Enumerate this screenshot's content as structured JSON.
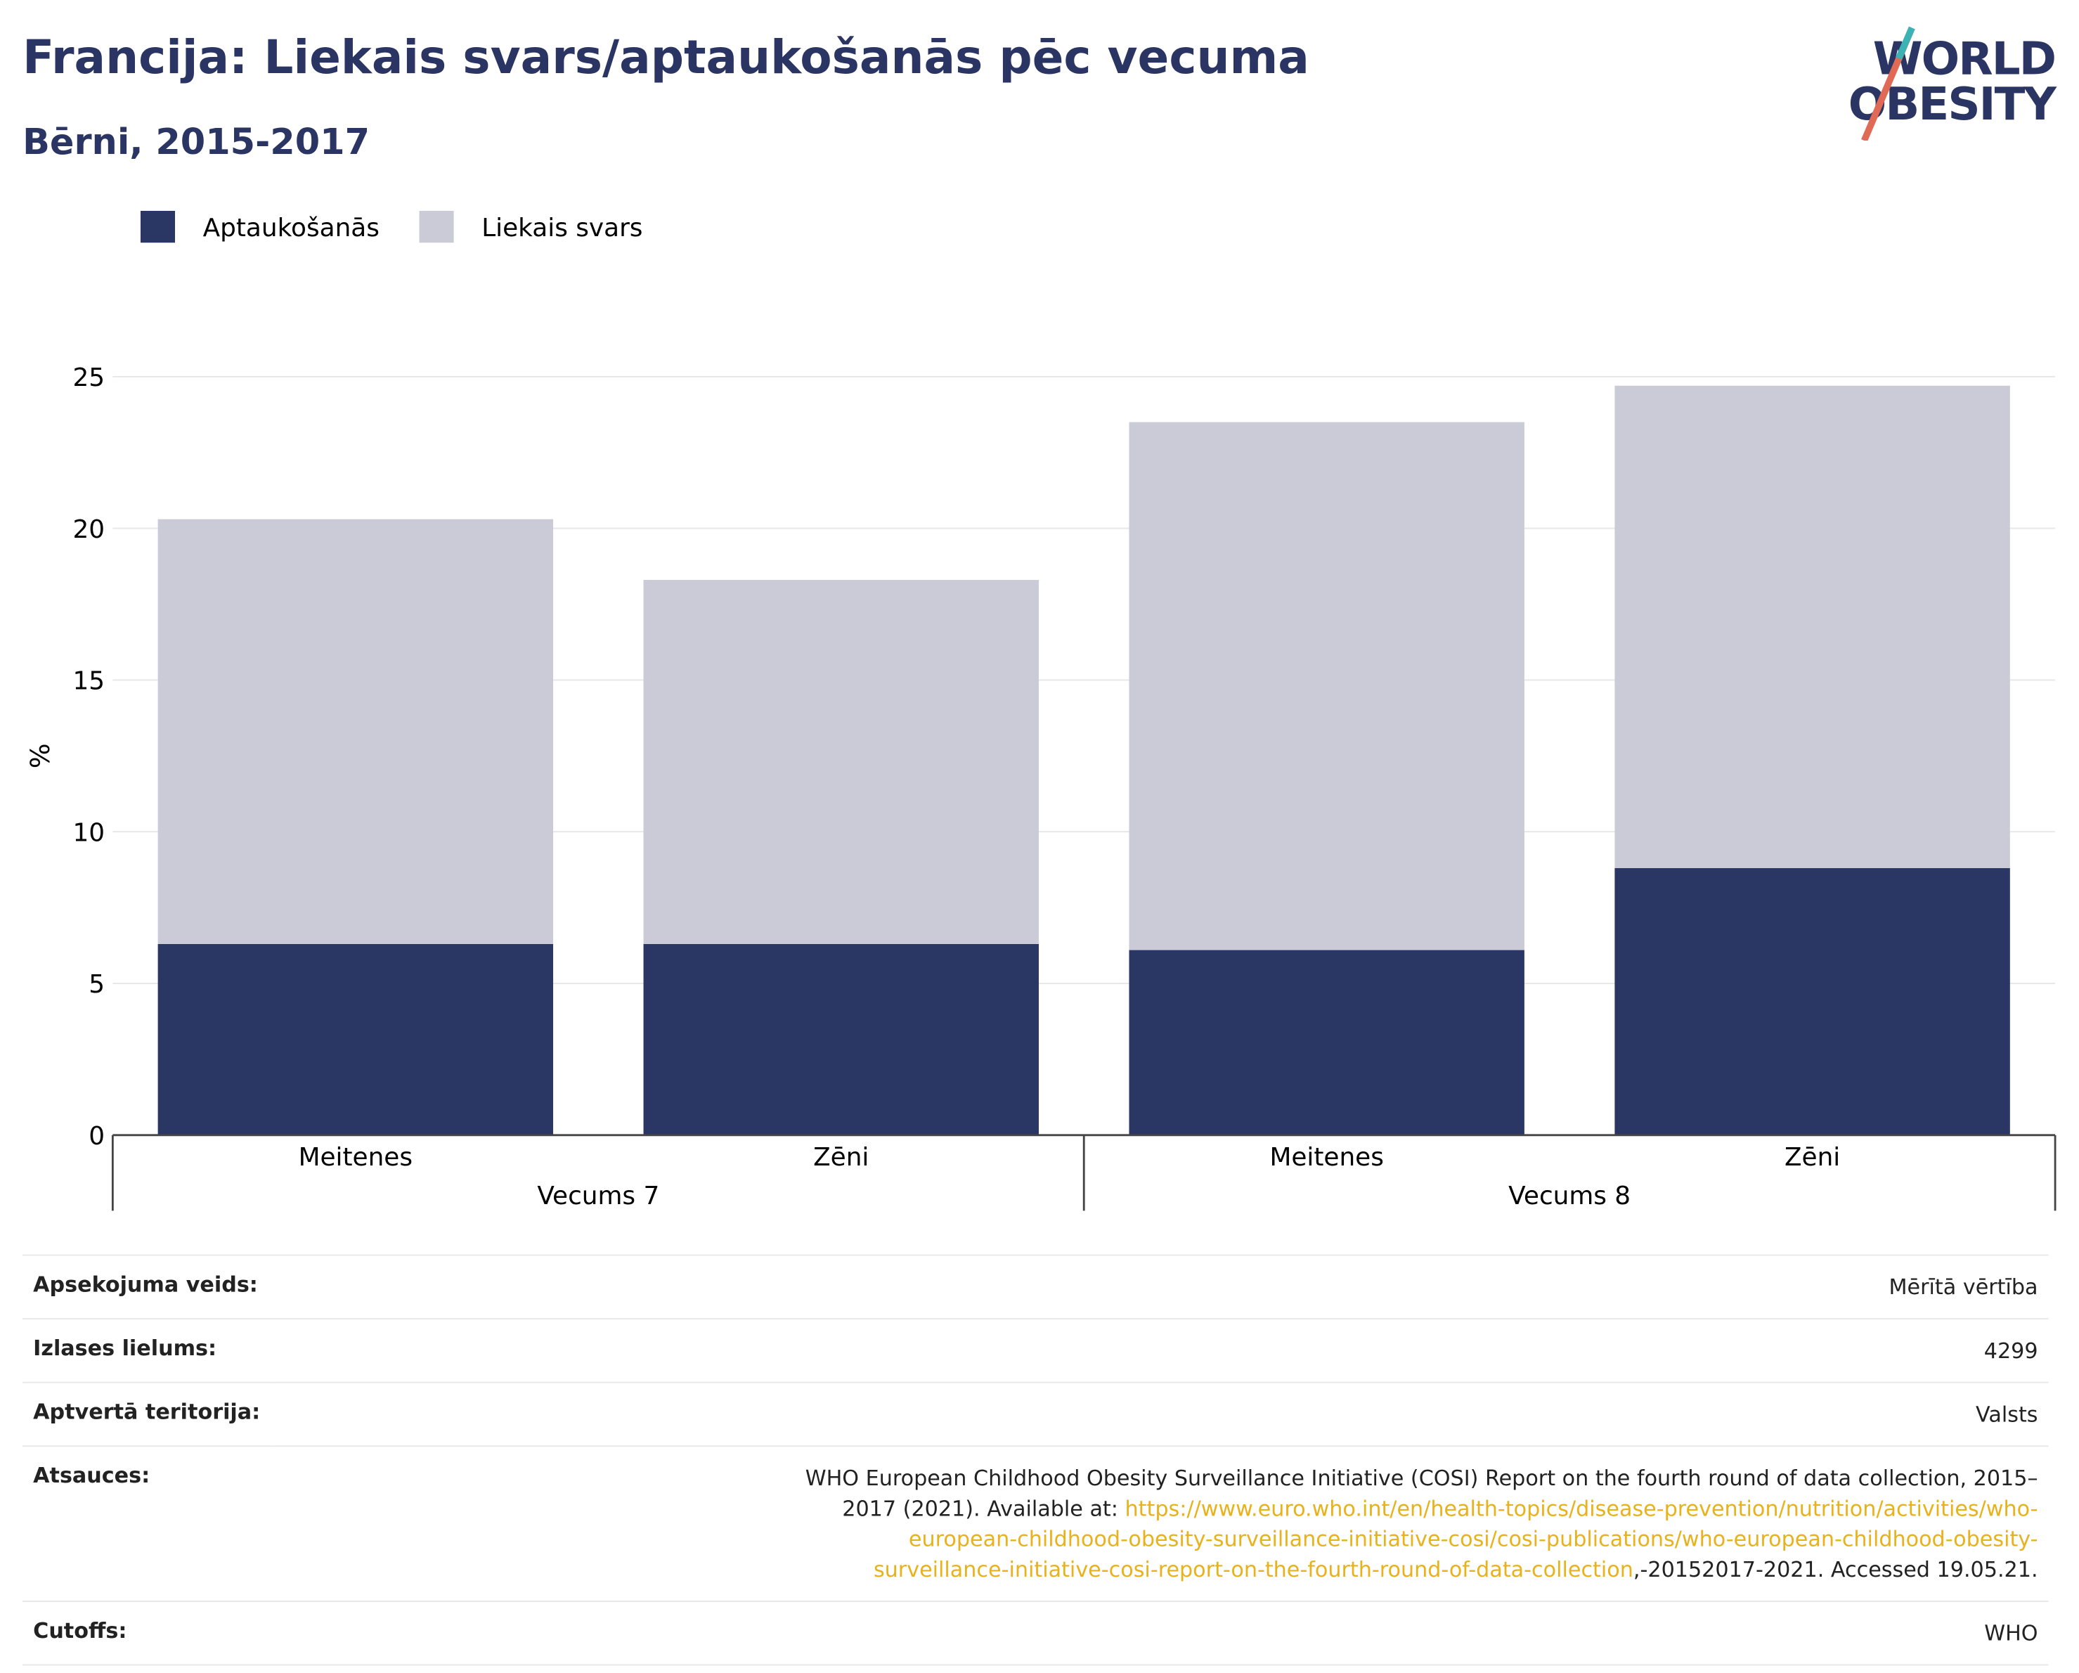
{
  "chart_data": {
    "type": "bar",
    "stacked": true,
    "title": "Francija: Liekais svars/aptaukošanās pēc vecuma",
    "subtitle": "Bērni, 2015-2017",
    "ylabel": "%",
    "categories": [
      "Meitenes",
      "Zēni",
      "Meitenes",
      "Zēni"
    ],
    "groups": [
      "Vecums 7",
      "Vecums 8"
    ],
    "series": [
      {
        "name": "Aptaukošanās",
        "color": "#2a3663",
        "values": [
          6.3,
          6.3,
          6.1,
          8.8
        ]
      },
      {
        "name": "Liekais svars",
        "color": "#cacbd7",
        "values": [
          14.0,
          12.0,
          17.4,
          15.9
        ]
      }
    ],
    "ylim": [
      0,
      25
    ],
    "yticks": [
      0,
      5,
      10,
      15,
      20,
      25
    ],
    "grid": true,
    "legend": "top-left"
  },
  "logo": {
    "line1": "WORLD",
    "line2": "OBESITY"
  },
  "info": {
    "rows": [
      {
        "label": "Apsekojuma veids:",
        "value": "Mērītā vērtība"
      },
      {
        "label": "Izlases lielums:",
        "value": "4299"
      },
      {
        "label": "Aptvertā teritorija:",
        "value": "Valsts"
      }
    ],
    "source": {
      "label": "Atsauces:",
      "text_before": "WHO European Childhood Obesity Surveillance Initiative (COSI) Report on the fourth round of data collection, 2015–2017 (2021). Available at: ",
      "link": "https://www.euro.who.int/en/health-topics/disease-prevention/nutrition/activities/who-european-childhood-obesity-surveillance-initiative-cosi/cosi-publications/who-european-childhood-obesity-surveillance-initiative-cosi-report-on-the-fourth-round-of-data-collection",
      "text_after": ",-20152017-2021. Accessed 19.05.21."
    },
    "cutoffs": {
      "label": "Cutoffs:",
      "value": "WHO"
    }
  }
}
